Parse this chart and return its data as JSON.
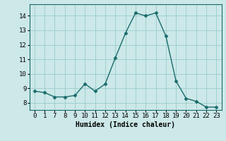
{
  "x_labels": [
    "0",
    "1",
    "7",
    "8",
    "9",
    "10",
    "11",
    "12",
    "13",
    "14",
    "15",
    "16",
    "17",
    "18",
    "19",
    "20",
    "21",
    "22",
    "23"
  ],
  "y_values": [
    8.8,
    8.7,
    8.4,
    8.4,
    8.5,
    9.3,
    8.8,
    9.3,
    11.1,
    12.8,
    14.2,
    14.0,
    14.2,
    12.6,
    9.5,
    8.3,
    8.1,
    7.7,
    7.7
  ],
  "xlabel": "Humidex (Indice chaleur)",
  "ylim": [
    7.5,
    14.8
  ],
  "yticks": [
    8,
    9,
    10,
    11,
    12,
    13,
    14
  ],
  "line_color": "#1a6b6b",
  "marker": "D",
  "marker_size": 2.5,
  "bg_color": "#cce8e8",
  "grid_color": "#99cccc",
  "font_name": "monospace",
  "label_fontsize": 7,
  "tick_fontsize": 6.5,
  "linewidth": 1.0
}
